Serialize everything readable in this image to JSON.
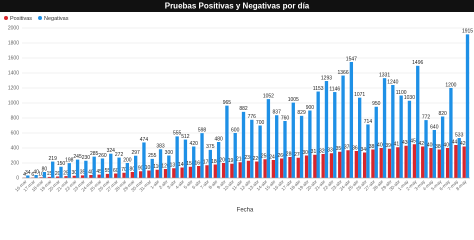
{
  "chart_data": {
    "type": "bar",
    "title": "Pruebas Positivas y Negativas por día",
    "x_label": "Fecha",
    "categories": [
      "16-mar",
      "17-mar",
      "18-mar",
      "19-mar",
      "20-mar",
      "21-mar",
      "22-mar",
      "23-mar",
      "24-mar",
      "25-mar",
      "26-mar",
      "27-mar",
      "28-mar",
      "29-mar",
      "30-mar",
      "31-mar",
      "1-abr",
      "2-abr",
      "3-abr",
      "4-abr",
      "5-abr",
      "6-abr",
      "7-abr",
      "8-abr",
      "9-abr",
      "10-abr",
      "11-abr",
      "12-abr",
      "13-abr",
      "14-abr",
      "15-abr",
      "16-abr",
      "17-abr",
      "18-abr",
      "19-abr",
      "20-abr",
      "21-abr",
      "22-abr",
      "23-abr",
      "24-abr",
      "25-abr",
      "26-abr",
      "27-abr",
      "28-abr",
      "29-abr",
      "30-abr",
      "1-may",
      "2-may",
      "3-may",
      "4-may",
      "5-may",
      "6-may",
      "7-may",
      "8-may"
    ],
    "series": [
      {
        "name": "Positivas",
        "color": "#d9262c",
        "values": [
          4,
          6,
          10,
          15,
          20,
          25,
          30,
          35,
          40,
          45,
          55,
          60,
          70,
          80,
          90,
          100,
          110,
          120,
          130,
          140,
          150,
          160,
          170,
          180,
          200,
          190,
          210,
          230,
          220,
          250,
          240,
          260,
          280,
          270,
          300,
          310,
          320,
          330,
          350,
          370,
          360,
          340,
          380,
          400,
          390,
          410,
          430,
          450,
          420,
          400,
          380,
          400,
          440,
          420
        ]
      },
      {
        "name": "Negativas",
        "color": "#1e90e6",
        "values": [
          34,
          40,
          80,
          219,
          150,
          198,
          245,
          230,
          285,
          260,
          324,
          272,
          200,
          297,
          474,
          255,
          383,
          300,
          555,
          512,
          420,
          598,
          375,
          480,
          965,
          600,
          882,
          776,
          700,
          1052,
          837,
          760,
          1005,
          829,
          900,
          1153,
          1293,
          1146,
          1366,
          1547,
          1071,
          714,
          950,
          1331,
          1240,
          1100,
          1030,
          1496,
          772,
          640,
          820,
          1200,
          533,
          1915
        ]
      }
    ],
    "ylim": [
      0,
      2000
    ],
    "yticks": [
      0,
      200,
      400,
      600,
      800,
      1000,
      1200,
      1400,
      1600,
      1800,
      2000
    ],
    "grid": true,
    "legend": "top-left"
  }
}
